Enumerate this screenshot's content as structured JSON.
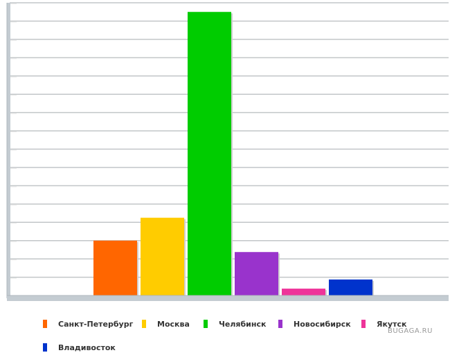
{
  "chart_data": {
    "type": "bar",
    "categories": [
      "Санкт-Петербург",
      "Москва",
      "Челябинск",
      "Новосибирск",
      "Якутск",
      "Владивосток"
    ],
    "values": [
      24,
      34,
      124,
      19,
      3,
      7
    ],
    "colors": [
      "#ff6600",
      "#ffcc00",
      "#00cc00",
      "#9933cc",
      "#ee3399",
      "#0033cc"
    ],
    "ylim": [
      0,
      128
    ],
    "grid": true,
    "legend_position": "bottom"
  },
  "watermark": "BUGAGA.RU"
}
